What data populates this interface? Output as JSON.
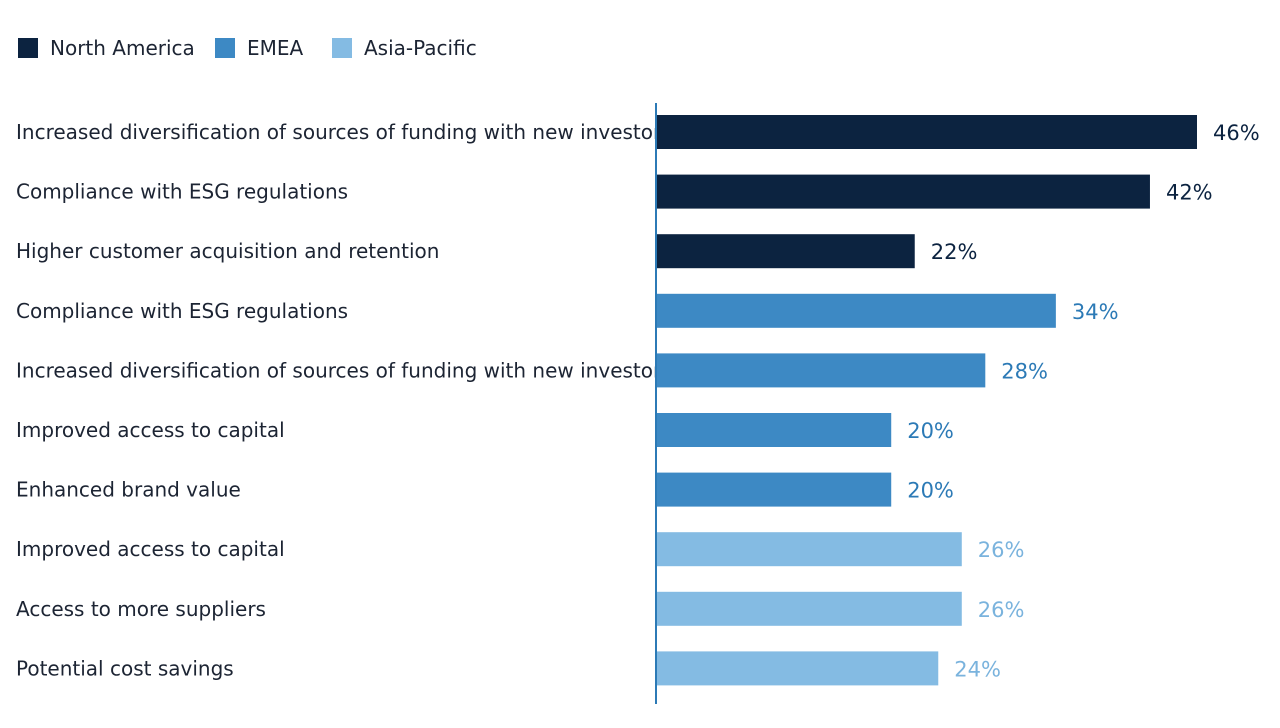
{
  "chart_data": {
    "type": "bar",
    "orientation": "horizontal",
    "legend_position": "top-left",
    "grid": false,
    "xlim": [
      0,
      46
    ],
    "value_suffix": "%",
    "series": [
      {
        "name": "North America",
        "color": "#0c2340",
        "label_color": "#0c2340",
        "categories": [
          "Increased diversification of sources of funding with new investors",
          "Compliance with ESG regulations",
          "Higher customer acquisition and retention"
        ],
        "values": [
          46,
          42,
          22
        ],
        "value_labels": [
          "46%",
          "42%",
          "22%"
        ]
      },
      {
        "name": "EMEA",
        "color": "#3d89c4",
        "label_color": "#2c7ab6",
        "categories": [
          "Compliance with ESG regulations",
          "Increased diversification of sources of funding with new investors",
          "Improved access to capital",
          "Enhanced brand value"
        ],
        "values": [
          34,
          28,
          20,
          20
        ],
        "value_labels": [
          "34%",
          "28%",
          "20%",
          "20%"
        ]
      },
      {
        "name": "Asia-Pacific",
        "color": "#84bbe3",
        "label_color": "#7ab3dd",
        "categories": [
          "Improved access to capital",
          "Access to more suppliers",
          "Potential cost savings"
        ],
        "values": [
          26,
          26,
          24
        ],
        "value_labels": [
          "26%",
          "26%",
          "24%"
        ]
      }
    ],
    "axis_color": "#2c7ab6"
  }
}
